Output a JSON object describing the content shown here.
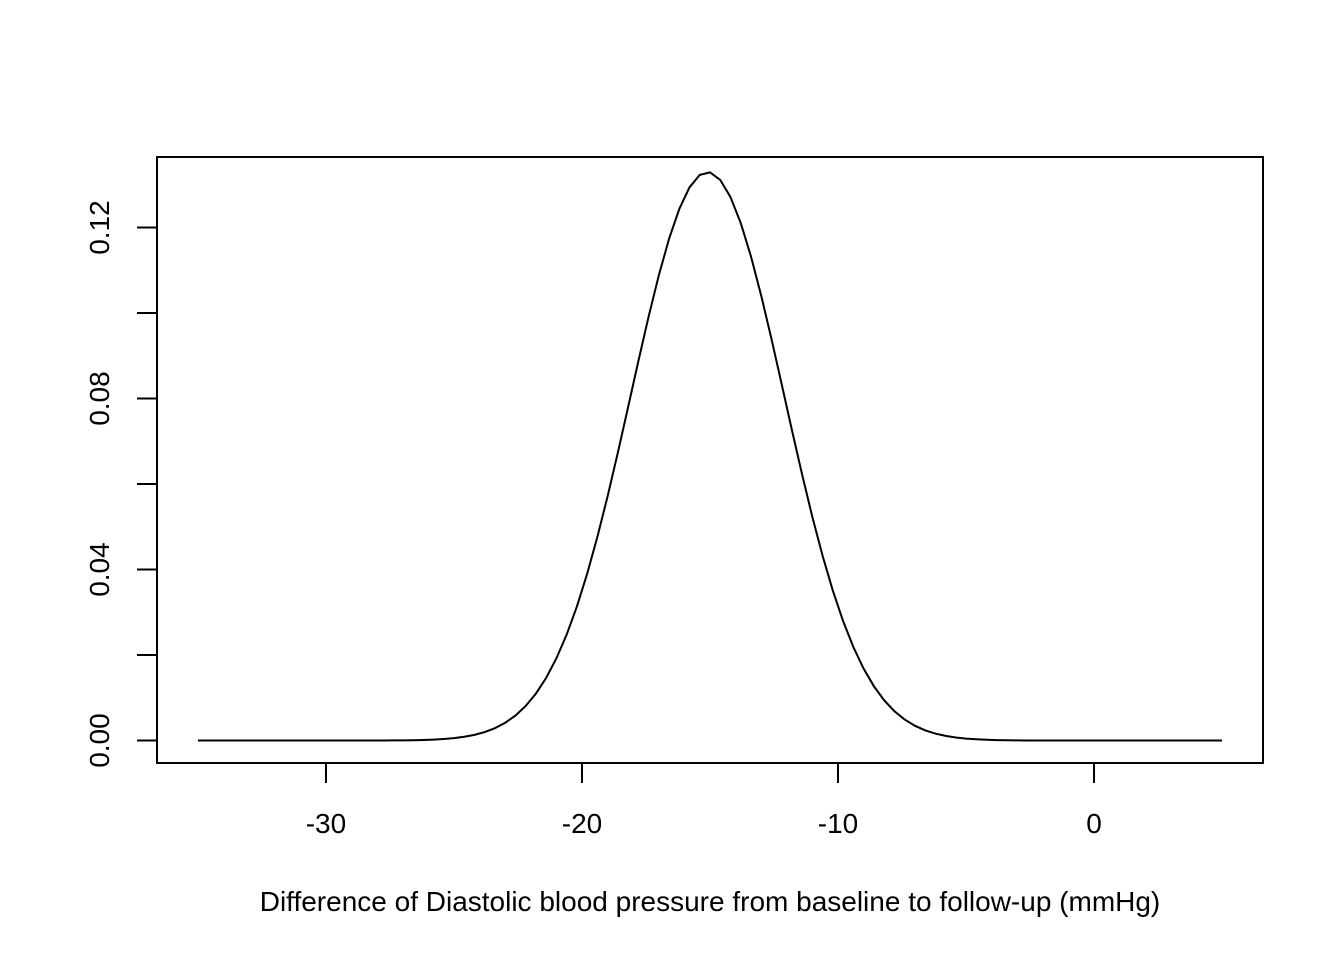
{
  "chart_data": {
    "type": "line",
    "title": "",
    "xlabel": "Difference of Diastolic blood pressure from baseline to follow-up (mmHg)",
    "ylabel": "",
    "xlim": [
      -36.6,
      6.6
    ],
    "ylim": [
      -0.00525,
      0.1365
    ],
    "x_ticks": [
      -30,
      -20,
      -10,
      0
    ],
    "x_tick_labels": [
      "-30",
      "-20",
      "-10",
      "0"
    ],
    "y_ticks": [
      0.0,
      0.02,
      0.04,
      0.06,
      0.08,
      0.1,
      0.12
    ],
    "y_tick_labels": [
      "0.00",
      "",
      "0.04",
      "",
      "0.08",
      "",
      "0.12"
    ],
    "grid": false,
    "legend": "none",
    "line_color": "#000000",
    "series": [
      {
        "distribution": "normal",
        "mean": -15.1,
        "sd": 3.0,
        "x_start": -35,
        "x_end": 5,
        "n_points": 101
      }
    ]
  }
}
